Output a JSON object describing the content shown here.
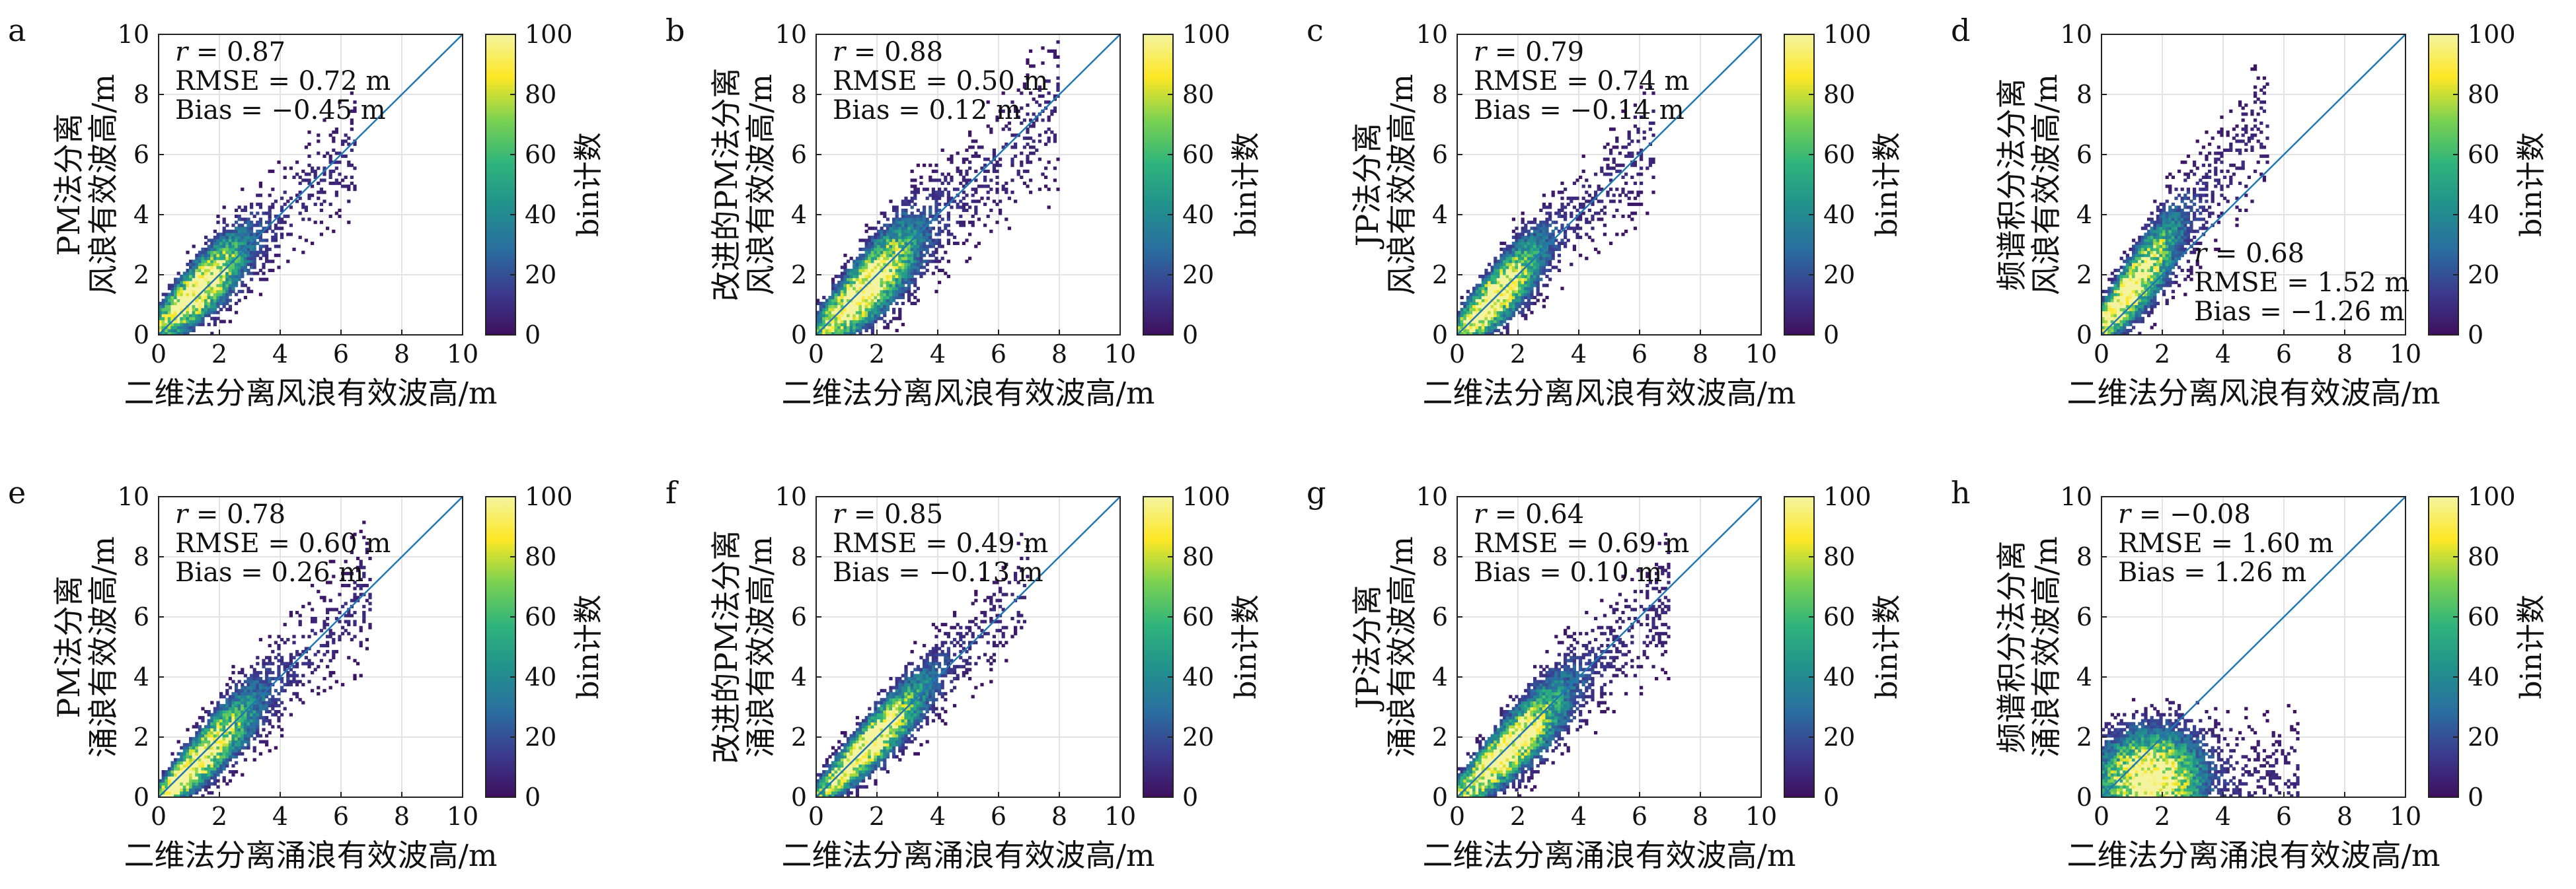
{
  "figure": {
    "colorbar_label": "bin计数",
    "colorbar_ticks": [
      0,
      20,
      40,
      60,
      80,
      100
    ],
    "colorbar_range": [
      0,
      100
    ],
    "colormap": [
      "#3e0f5e",
      "#3b3b8f",
      "#2a6fa0",
      "#21918c",
      "#2fb47c",
      "#7ad151",
      "#fde725",
      "#f4f4a0"
    ],
    "reference_line_color": "#1f77b4",
    "grid": true
  },
  "chart_data": [
    {
      "type": "heatmap",
      "panel": "a",
      "xlabel": "二维法分离风浪有效波高/m",
      "ylabel": [
        "PM法分离",
        "风浪有效波高/m"
      ],
      "xlim": [
        0,
        10
      ],
      "ylim": [
        0,
        10
      ],
      "xticks": [
        0,
        2,
        4,
        6,
        8,
        10
      ],
      "yticks": [
        0,
        2,
        4,
        6,
        8,
        10
      ],
      "stats": {
        "r": "0.87",
        "rmse": "RMSE = 0.72 m",
        "bias": "Bias = −0.45 m"
      },
      "stats_position": "top-left",
      "wave": "wind"
    },
    {
      "type": "heatmap",
      "panel": "b",
      "xlabel": "二维法分离风浪有效波高/m",
      "ylabel": [
        "改进的PM法分离",
        "风浪有效波高/m"
      ],
      "xlim": [
        0,
        10
      ],
      "ylim": [
        0,
        10
      ],
      "xticks": [
        0,
        2,
        4,
        6,
        8,
        10
      ],
      "yticks": [
        0,
        2,
        4,
        6,
        8,
        10
      ],
      "stats": {
        "r": "0.88",
        "rmse": "RMSE = 0.50 m",
        "bias": "Bias = 0.12 m"
      },
      "stats_position": "top-left",
      "wave": "wind"
    },
    {
      "type": "heatmap",
      "panel": "c",
      "xlabel": "二维法分离风浪有效波高/m",
      "ylabel": [
        "JP法分离",
        "风浪有效波高/m"
      ],
      "xlim": [
        0,
        10
      ],
      "ylim": [
        0,
        10
      ],
      "xticks": [
        0,
        2,
        4,
        6,
        8,
        10
      ],
      "yticks": [
        0,
        2,
        4,
        6,
        8,
        10
      ],
      "stats": {
        "r": "0.79",
        "rmse": "RMSE = 0.74 m",
        "bias": "Bias = −0.14 m"
      },
      "stats_position": "top-left",
      "wave": "wind"
    },
    {
      "type": "heatmap",
      "panel": "d",
      "xlabel": "二维法分离风浪有效波高/m",
      "ylabel": [
        "频谱积分法分离",
        "风浪有效波高/m"
      ],
      "xlim": [
        0,
        10
      ],
      "ylim": [
        0,
        10
      ],
      "xticks": [
        0,
        2,
        4,
        6,
        8,
        10
      ],
      "yticks": [
        0,
        2,
        4,
        6,
        8,
        10
      ],
      "stats": {
        "r": "0.68",
        "rmse": "RMSE = 1.52 m",
        "bias": "Bias = −1.26 m"
      },
      "stats_position": "bottom-right",
      "wave": "wind"
    },
    {
      "type": "heatmap",
      "panel": "e",
      "xlabel": "二维法分离涌浪有效波高/m",
      "ylabel": [
        "PM法分离",
        "涌浪有效波高/m"
      ],
      "xlim": [
        0,
        10
      ],
      "ylim": [
        0,
        10
      ],
      "xticks": [
        0,
        2,
        4,
        6,
        8,
        10
      ],
      "yticks": [
        0,
        2,
        4,
        6,
        8,
        10
      ],
      "stats": {
        "r": "0.78",
        "rmse": "RMSE = 0.60 m",
        "bias": "Bias = 0.26 m"
      },
      "stats_position": "top-left",
      "wave": "swell"
    },
    {
      "type": "heatmap",
      "panel": "f",
      "xlabel": "二维法分离涌浪有效波高/m",
      "ylabel": [
        "改进的PM法分离",
        "涌浪有效波高/m"
      ],
      "xlim": [
        0,
        10
      ],
      "ylim": [
        0,
        10
      ],
      "xticks": [
        0,
        2,
        4,
        6,
        8,
        10
      ],
      "yticks": [
        0,
        2,
        4,
        6,
        8,
        10
      ],
      "stats": {
        "r": "0.85",
        "rmse": "RMSE = 0.49 m",
        "bias": "Bias = −0.13 m"
      },
      "stats_position": "top-left",
      "wave": "swell"
    },
    {
      "type": "heatmap",
      "panel": "g",
      "xlabel": "二维法分离涌浪有效波高/m",
      "ylabel": [
        "JP法分离",
        "涌浪有效波高/m"
      ],
      "xlim": [
        0,
        10
      ],
      "ylim": [
        0,
        10
      ],
      "xticks": [
        0,
        2,
        4,
        6,
        8,
        10
      ],
      "yticks": [
        0,
        2,
        4,
        6,
        8,
        10
      ],
      "stats": {
        "r": "0.64",
        "rmse": "RMSE = 0.69 m",
        "bias": "Bias = 0.10 m"
      },
      "stats_position": "top-left",
      "wave": "swell"
    },
    {
      "type": "heatmap",
      "panel": "h",
      "xlabel": "二维法分离涌浪有效波高/m",
      "ylabel": [
        "频谱积分法分离",
        "涌浪有效波高/m"
      ],
      "xlim": [
        0,
        10
      ],
      "ylim": [
        0,
        10
      ],
      "xticks": [
        0,
        2,
        4,
        6,
        8,
        10
      ],
      "yticks": [
        0,
        2,
        4,
        6,
        8,
        10
      ],
      "stats": {
        "r": "−0.08",
        "rmse": "RMSE = 1.60 m",
        "bias": "Bias = 1.26 m"
      },
      "stats_position": "top-left",
      "wave": "swell"
    }
  ]
}
